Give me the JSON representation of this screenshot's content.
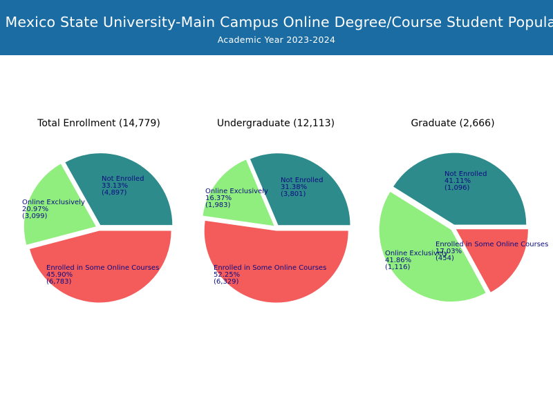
{
  "header": {
    "title": "New Mexico State University-Main Campus Online Degree/Course Student Population",
    "subtitle": "Academic Year 2023-2024",
    "background": "#1b6ca3"
  },
  "chart_data": [
    {
      "type": "pie",
      "title": "Total Enrollment (14,779)",
      "categories": [
        "Not Enrolled",
        "Online Exclusively",
        "Enrolled in Some Online Courses"
      ],
      "values": [
        4897,
        3099,
        6783
      ],
      "percentages": [
        "33.13%",
        "20.97%",
        "45.90%"
      ],
      "counts": [
        "(4,897)",
        "(3,099)",
        "(6,783)"
      ],
      "colors": [
        "#2e8b8b",
        "#90ee7e",
        "#f45b5b"
      ],
      "start_angle": 0,
      "counterclock": true,
      "explode": true
    },
    {
      "type": "pie",
      "title": "Undergraduate (12,113)",
      "categories": [
        "Not Enrolled",
        "Online Exclusively",
        "Enrolled in Some Online Courses"
      ],
      "values": [
        3801,
        1983,
        6329
      ],
      "percentages": [
        "31.38%",
        "16.37%",
        "52.25%"
      ],
      "counts": [
        "(3,801)",
        "(1,983)",
        "(6,329)"
      ],
      "colors": [
        "#2e8b8b",
        "#90ee7e",
        "#f45b5b"
      ],
      "start_angle": 0,
      "counterclock": true,
      "explode": true
    },
    {
      "type": "pie",
      "title": "Graduate (2,666)",
      "categories": [
        "Not Enrolled",
        "Online Exclusively",
        "Enrolled in Some Online Courses"
      ],
      "values": [
        1096,
        1116,
        454
      ],
      "percentages": [
        "41.11%",
        "41.86%",
        "17.03%"
      ],
      "counts": [
        "(1,096)",
        "(1,116)",
        "(454)"
      ],
      "colors": [
        "#2e8b8b",
        "#90ee7e",
        "#f45b5b"
      ],
      "start_angle": 0,
      "counterclock": true,
      "explode": true
    }
  ]
}
